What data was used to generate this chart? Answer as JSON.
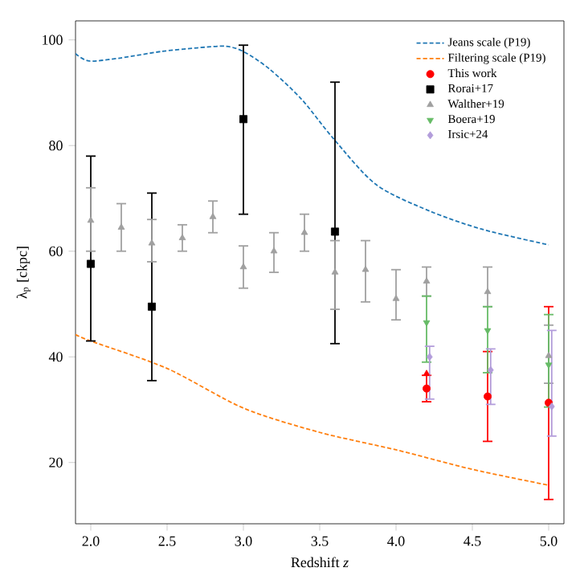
{
  "chart_data": {
    "type": "scatter",
    "xlabel": "Redshift *z*",
    "ylabel": "λ$_{p}$ [ckpc]",
    "xlim": [
      1.9,
      5.1
    ],
    "ylim": [
      8.4,
      103.6
    ],
    "xticks": [
      {
        "value": 2,
        "label": "2.0"
      },
      {
        "value": 2.5,
        "label": "2.5"
      },
      {
        "value": 3,
        "label": "3.0"
      },
      {
        "value": 3.5,
        "label": "3.5"
      },
      {
        "value": 4,
        "label": "4.0"
      },
      {
        "value": 4.5,
        "label": "4.5"
      },
      {
        "value": 5,
        "label": "5.0"
      }
    ],
    "yticks": [
      20,
      40,
      60,
      80,
      100
    ],
    "legend": "top right",
    "grid": false,
    "series": [
      {
        "name": "Jeans scale (P19)",
        "type": "line",
        "line_style": "dashed",
        "marker": "none",
        "color": "#1f77b4",
        "x": [
          1.9,
          1.99,
          2.2,
          2.46,
          2.7,
          2.88,
          3.0,
          3.17,
          3.38,
          3.59,
          3.87,
          4.22,
          4.57,
          5.0
        ],
        "values": [
          97.4,
          96,
          96.6,
          97.8,
          98.5,
          98.8,
          97.8,
          94.5,
          88.8,
          81.3,
          72.6,
          67.6,
          64.1,
          61.2
        ]
      },
      {
        "name": "Filtering scale (P19)",
        "type": "line",
        "line_style": "dashed",
        "marker": "none",
        "color": "#ff7f0e",
        "x": [
          1.9,
          2.0,
          2.5,
          3.0,
          3.5,
          4.0,
          4.5,
          5.0
        ],
        "values": [
          44.2,
          43,
          37.8,
          30.3,
          25.7,
          22.4,
          18.7,
          15.7
        ]
      },
      {
        "name": "This work",
        "marker": "circle",
        "color": "#ff0000",
        "x": [
          4.2,
          4.6,
          5.0
        ],
        "values": [
          34,
          32.5,
          31.3
        ],
        "errors": [
          [
            31.5,
            36.5
          ],
          [
            24,
            41
          ],
          [
            13,
            49.5
          ]
        ]
      },
      {
        "name": "Rorai+17",
        "marker": "square",
        "color": "#000000",
        "x": [
          2.0,
          2.4,
          3.0,
          3.6
        ],
        "values": [
          57.6,
          49.5,
          85,
          63.7
        ],
        "errors": [
          [
            43,
            78
          ],
          [
            35.5,
            71
          ],
          [
            67,
            99
          ],
          [
            42.5,
            92
          ]
        ]
      },
      {
        "name": "Walther+19",
        "marker": "triangle",
        "color": "#a0a0a0",
        "x": [
          2.0,
          2.2,
          2.4,
          2.6,
          2.8,
          3.0,
          3.2,
          3.4,
          3.6,
          3.8,
          4.0,
          4.2,
          4.6,
          5.0
        ],
        "values": [
          65.8,
          64.5,
          61.5,
          62.5,
          66.5,
          57,
          60,
          63.5,
          56,
          56.5,
          51,
          54.3,
          52.3,
          40.2
        ],
        "errors": [
          [
            60,
            72
          ],
          [
            60,
            69
          ],
          [
            58,
            66
          ],
          [
            60,
            65
          ],
          [
            63.5,
            69.5
          ],
          [
            53,
            61
          ],
          [
            56,
            63.5
          ],
          [
            60,
            67
          ],
          [
            49,
            62
          ],
          [
            50.4,
            62
          ],
          [
            47,
            56.5
          ],
          [
            51.5,
            57
          ],
          [
            49.5,
            57
          ],
          [
            35,
            46
          ]
        ]
      },
      {
        "name": "Boera+19",
        "marker": "triangle down",
        "color": "#66bb66",
        "x": [
          4.2,
          4.6,
          5.0
        ],
        "values": [
          46.5,
          45,
          38.5
        ],
        "errors": [
          [
            39,
            51.5
          ],
          [
            37,
            49.5
          ],
          [
            30.5,
            48
          ]
        ]
      },
      {
        "name": "Irsic+24",
        "marker": "diamond",
        "color": "#b39ddb",
        "x": [
          4.22,
          4.62,
          5.02
        ],
        "values": [
          40,
          37.5,
          30.6
        ],
        "errors": [
          [
            32,
            42
          ],
          [
            31,
            41.5
          ],
          [
            25,
            45
          ]
        ]
      },
      {
        "marker": "triangle",
        "color": "#ff0000",
        "x": [
          4.2
        ],
        "values": [
          36.8
        ]
      }
    ]
  }
}
